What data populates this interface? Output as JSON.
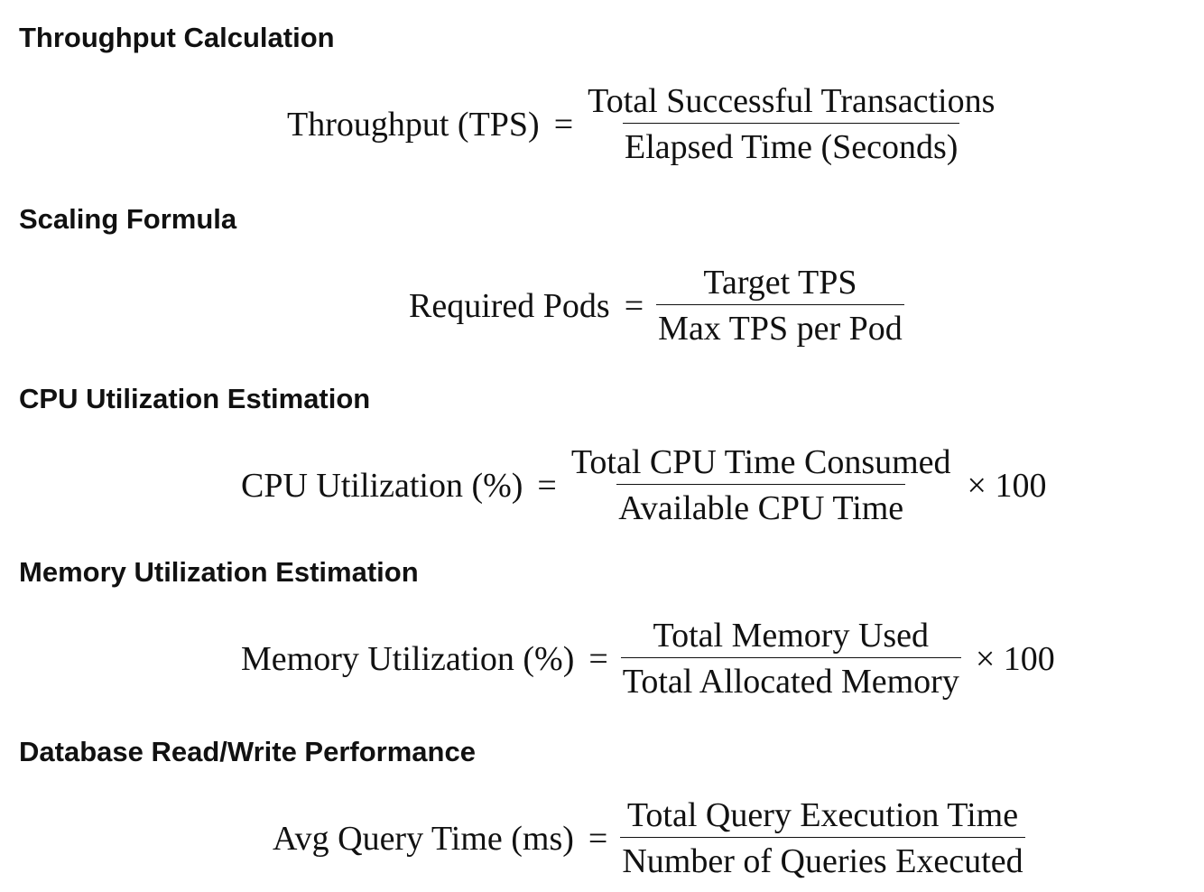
{
  "sections": [
    {
      "heading": "Throughput Calculation",
      "lhs": "Throughput (TPS)",
      "equals": "=",
      "numerator": "Total Successful Transactions",
      "denominator": "Elapsed Time (Seconds)",
      "multiplier": ""
    },
    {
      "heading": "Scaling Formula",
      "lhs": "Required Pods",
      "equals": "=",
      "numerator": "Target TPS",
      "denominator": "Max TPS per Pod",
      "multiplier": ""
    },
    {
      "heading": "CPU Utilization Estimation",
      "lhs": "CPU Utilization (%)",
      "equals": "=",
      "numerator": "Total CPU Time Consumed",
      "denominator": "Available CPU Time",
      "multiplier": "× 100"
    },
    {
      "heading": "Memory Utilization Estimation",
      "lhs": "Memory Utilization (%)",
      "equals": "=",
      "numerator": "Total Memory Used",
      "denominator": "Total Allocated Memory",
      "multiplier": "× 100"
    },
    {
      "heading": "Database Read/Write Performance",
      "lhs": "Avg Query Time (ms)",
      "equals": "=",
      "numerator": "Total Query Execution Time",
      "denominator": "Number of Queries Executed",
      "multiplier": ""
    }
  ]
}
